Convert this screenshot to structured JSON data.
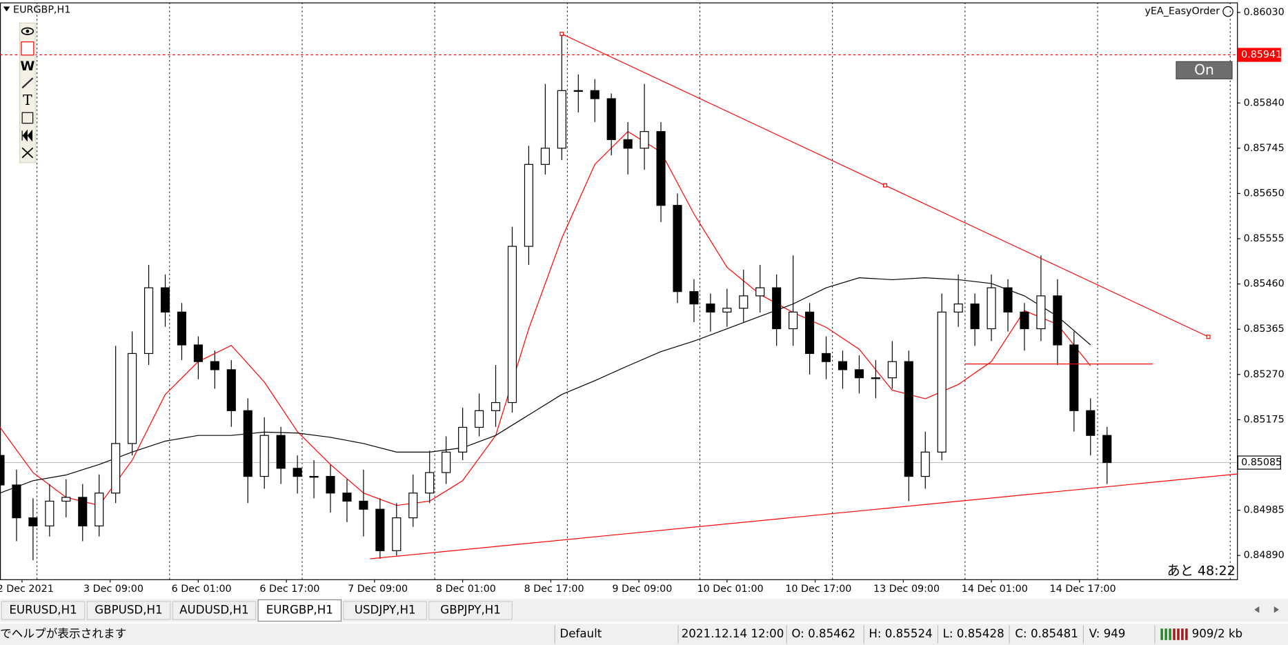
{
  "chart_window": {
    "symbol": "EURGBP,H1",
    "ea_name": "yEA_EasyOrder",
    "ea_button": "On",
    "countdown": "あと 48:22"
  },
  "chart_data": {
    "type": "candlestick",
    "x": [
      0,
      3,
      6,
      9,
      12,
      15,
      18,
      21,
      24,
      27,
      30,
      33,
      36,
      39,
      42,
      45,
      48,
      51,
      54,
      57,
      60,
      63,
      66,
      69,
      72,
      75,
      78,
      81,
      84,
      87,
      90,
      93,
      96,
      99,
      102,
      105,
      108,
      111,
      114,
      117,
      120,
      123,
      126,
      129,
      132,
      135,
      138,
      141,
      144,
      147,
      150,
      153,
      156,
      159,
      162,
      165,
      168,
      171,
      174,
      177,
      180,
      183,
      186,
      189,
      192,
      195,
      198,
      201
    ],
    "open": [
      0.851,
      0.85038,
      0.84969,
      0.84952,
      0.85004,
      0.85012,
      0.84952,
      0.85021,
      0.85125,
      0.85314,
      0.85452,
      0.85401,
      0.85332,
      0.85297,
      0.8528,
      0.85194,
      0.85056,
      0.85142,
      0.85073,
      0.85056,
      0.85056,
      0.85021,
      0.85004,
      0.84987,
      0.849,
      0.84969,
      0.85021,
      0.85064,
      0.85107,
      0.85159,
      0.85194,
      0.85211,
      0.85539,
      0.85711,
      0.85745,
      0.85866,
      0.85866,
      0.85849,
      0.85763,
      0.85745,
      0.8578,
      0.85625,
      0.85444,
      0.85418,
      0.85401,
      0.85409,
      0.85435,
      0.85452,
      0.85366,
      0.85401,
      0.85314,
      0.85297,
      0.8528,
      0.85263,
      0.85263,
      0.85297,
      0.85056,
      0.85107,
      0.85401,
      0.85418,
      0.85366,
      0.85452,
      0.85401,
      0.85366,
      0.85435,
      0.85332,
      0.85194,
      0.85142
    ],
    "high": [
      0.8513,
      0.8507,
      0.8501,
      0.8504,
      0.8505,
      0.8504,
      0.8506,
      0.8533,
      0.8536,
      0.855,
      0.8548,
      0.8542,
      0.8535,
      0.8532,
      0.853,
      0.8522,
      0.8518,
      0.8516,
      0.851,
      0.8509,
      0.8508,
      0.8505,
      0.8507,
      0.8501,
      0.85,
      0.8506,
      0.8511,
      0.8514,
      0.852,
      0.8523,
      0.8529,
      0.8558,
      0.8575,
      0.8588,
      0.85983,
      0.859,
      0.8589,
      0.8586,
      0.858,
      0.8588,
      0.858,
      0.8565,
      0.8547,
      0.8544,
      0.8545,
      0.8549,
      0.855,
      0.8548,
      0.8552,
      0.8542,
      0.8535,
      0.8532,
      0.8531,
      0.853,
      0.8534,
      0.8532,
      0.8515,
      0.8544,
      0.8548,
      0.8544,
      0.8548,
      0.8547,
      0.8542,
      0.8552,
      0.8547,
      0.8536,
      0.8522,
      0.8516
    ],
    "low": [
      0.8499,
      0.8492,
      0.8488,
      0.8493,
      0.8497,
      0.8492,
      0.8493,
      0.85,
      0.851,
      0.8529,
      0.8537,
      0.853,
      0.8526,
      0.8524,
      0.8516,
      0.85,
      0.8503,
      0.8504,
      0.8502,
      0.8501,
      0.8498,
      0.8496,
      0.8493,
      0.84883,
      0.8489,
      0.8495,
      0.85,
      0.8504,
      0.8509,
      0.8514,
      0.8516,
      0.8519,
      0.855,
      0.8569,
      0.8572,
      0.8582,
      0.858,
      0.8573,
      0.8569,
      0.857,
      0.8559,
      0.8542,
      0.8538,
      0.8536,
      0.8537,
      0.8538,
      0.854,
      0.8533,
      0.8533,
      0.8527,
      0.8526,
      0.8524,
      0.8523,
      0.8522,
      0.8524,
      0.85004,
      0.8503,
      0.8509,
      0.8537,
      0.8533,
      0.8534,
      0.8536,
      0.8532,
      0.8534,
      0.8529,
      0.8515,
      0.851,
      0.8504
    ],
    "close": [
      0.85038,
      0.84969,
      0.84952,
      0.85004,
      0.85012,
      0.84952,
      0.85021,
      0.85125,
      0.85314,
      0.85452,
      0.85401,
      0.85332,
      0.85297,
      0.8528,
      0.85194,
      0.85056,
      0.85142,
      0.85073,
      0.85056,
      0.85056,
      0.85021,
      0.85004,
      0.84987,
      0.849,
      0.84969,
      0.85021,
      0.85064,
      0.85107,
      0.85159,
      0.85194,
      0.85211,
      0.85539,
      0.85711,
      0.85745,
      0.85866,
      0.85866,
      0.85849,
      0.85763,
      0.85745,
      0.8578,
      0.85625,
      0.85444,
      0.85418,
      0.85401,
      0.85409,
      0.85435,
      0.85452,
      0.85366,
      0.85401,
      0.85314,
      0.85297,
      0.8528,
      0.85263,
      0.85263,
      0.85297,
      0.85056,
      0.85107,
      0.85401,
      0.85418,
      0.85366,
      0.85452,
      0.85401,
      0.85366,
      0.85435,
      0.85332,
      0.85194,
      0.85142,
      0.85085
    ],
    "up_color": "#ffffff",
    "down_color": "#000000",
    "lines": [
      {
        "color": "#ff0000",
        "x": [
          0,
          6,
          12,
          18,
          24,
          30,
          36,
          42,
          48,
          54,
          60,
          66,
          72,
          78,
          84,
          90,
          96,
          102,
          108,
          114,
          120,
          126,
          132,
          138,
          144,
          150,
          156,
          162,
          168,
          174,
          180,
          186,
          192,
          198
        ],
        "values": [
          0.85159,
          0.85064,
          0.85012,
          0.84995,
          0.8509,
          0.85228,
          0.85297,
          0.85331,
          0.85254,
          0.8515,
          0.85081,
          0.85021,
          0.84995,
          0.85004,
          0.85047,
          0.85142,
          0.85366,
          0.85556,
          0.85711,
          0.8578,
          0.85737,
          0.85607,
          0.85495,
          0.85438,
          0.854,
          0.85369,
          0.85323,
          0.85237,
          0.85219,
          0.85249,
          0.85297,
          0.85404,
          0.85375,
          0.85288
        ]
      },
      {
        "color": "#000000",
        "x": [
          0,
          6,
          12,
          18,
          24,
          30,
          36,
          42,
          48,
          54,
          60,
          66,
          72,
          78,
          84,
          90,
          96,
          102,
          108,
          114,
          120,
          126,
          132,
          138,
          144,
          150,
          156,
          162,
          168,
          174,
          180,
          186,
          192,
          198
        ],
        "values": [
          0.85021,
          0.85047,
          0.85059,
          0.85081,
          0.85107,
          0.8513,
          0.85142,
          0.85142,
          0.85149,
          0.85147,
          0.85138,
          0.85125,
          0.85107,
          0.85107,
          0.85116,
          0.85142,
          0.85185,
          0.85228,
          0.85257,
          0.85288,
          0.85318,
          0.8534,
          0.85366,
          0.85392,
          0.85418,
          0.85452,
          0.85473,
          0.85469,
          0.85473,
          0.85469,
          0.85461,
          0.85435,
          0.85392,
          0.85332
        ]
      }
    ],
    "trendlines": [
      {
        "color": "#ff0000",
        "x": [
          102,
          160.7,
          219.4
        ],
        "values": [
          0.85985,
          0.85667,
          0.85349
        ]
      },
      {
        "color": "#ff0000",
        "x": [
          67.2,
          224.6
        ],
        "values": [
          0.84883,
          0.85061
        ]
      },
      {
        "color": "#ff0000",
        "x": [
          175.2,
          209.3
        ],
        "values": [
          0.85292,
          0.85292
        ]
      }
    ],
    "price_lines": [
      {
        "value": 0.85941,
        "color": "#ff0000"
      },
      {
        "value": 0.85085,
        "color": "#c0c0c0"
      }
    ],
    "xlim": [
      0,
      224.6
    ],
    "ylim": [
      0.8484,
      0.86051
    ],
    "yticks": [
      {
        "value": 0.8603,
        "label": "0.86030"
      },
      {
        "value": 0.8584,
        "label": "0.85840"
      },
      0.85745,
      {
        "value": 0.8565,
        "label": "0.85650"
      },
      0.85555,
      {
        "value": 0.8546,
        "label": "0.85460"
      },
      0.85365,
      {
        "value": 0.8527,
        "label": "0.85270"
      },
      0.85175,
      0.84985,
      {
        "value": 0.8489,
        "label": "0.84890"
      }
    ],
    "xticks": [
      {
        "value": 4,
        "label": "2 Dec 2021"
      },
      {
        "value": 20,
        "label": "3 Dec 09:00"
      },
      {
        "value": 36,
        "label": "6 Dec 01:00"
      },
      {
        "value": 52,
        "label": "6 Dec 17:00"
      },
      {
        "value": 68,
        "label": "7 Dec 09:00"
      },
      {
        "value": 84,
        "label": "8 Dec 01:00"
      },
      {
        "value": 100,
        "label": "8 Dec 17:00"
      },
      {
        "value": 116,
        "label": "9 Dec 09:00"
      },
      {
        "value": 132,
        "label": "10 Dec 01:00"
      },
      {
        "value": 148,
        "label": "10 Dec 17:00"
      },
      {
        "value": 164,
        "label": "13 Dec 09:00"
      },
      {
        "value": 180,
        "label": "14 Dec 01:00"
      },
      {
        "value": 196,
        "label": "14 Dec 17:00"
      }
    ]
  },
  "tabs": [
    "EURUSD,H1",
    "GBPUSD,H1",
    "AUDUSD,H1",
    "EURGBP,H1",
    "USDJPY,H1",
    "GBPJPY,H1"
  ],
  "active_tab": 3,
  "status_bar": {
    "help": "でヘルプが表示されます",
    "profile": "Default",
    "time": "2021.12.14 12:00",
    "open": "O: 0.85462",
    "high": "H: 0.85524",
    "low": "L: 0.85428",
    "close": "C: 0.85481",
    "volume": "V: 949",
    "traffic": "909/2 kb"
  }
}
